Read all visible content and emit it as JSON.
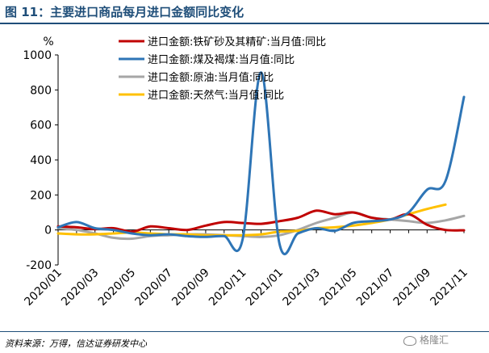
{
  "header": {
    "title": "图 11：主要进口商品每月进口金额同比变化"
  },
  "footer": {
    "source": "资料来源：万得，信达证券研发中心",
    "watermark": "格隆汇"
  },
  "colors": {
    "title": "#1f4e79",
    "axis": "#000000",
    "grid": "#000000"
  },
  "chart_data": {
    "type": "line",
    "unit": "%",
    "ylim": [
      -200,
      1000
    ],
    "yticks": [
      -200,
      0,
      200,
      400,
      600,
      800,
      1000
    ],
    "x": [
      "2020/01",
      "2020/02",
      "2020/03",
      "2020/04",
      "2020/05",
      "2020/06",
      "2020/07",
      "2020/08",
      "2020/09",
      "2020/10",
      "2020/11",
      "2020/12",
      "2021/01",
      "2021/02",
      "2021/03",
      "2021/04",
      "2021/05",
      "2021/06",
      "2021/07",
      "2021/08",
      "2021/09",
      "2021/10",
      "2021/11"
    ],
    "xticklabels": [
      "2020/01",
      "2020/03",
      "2020/05",
      "2020/07",
      "2020/09",
      "2020/11",
      "2021/01",
      "2021/03",
      "2021/05",
      "2021/07",
      "2021/09",
      "2021/11"
    ],
    "legend_position": "top-center",
    "series": [
      {
        "name": "进口金额:铁矿砂及其精矿:当月值:同比",
        "color": "#c00000",
        "values": [
          20,
          15,
          5,
          10,
          -10,
          20,
          10,
          0,
          25,
          45,
          40,
          35,
          50,
          70,
          110,
          90,
          100,
          70,
          60,
          90,
          30,
          0,
          -2
        ]
      },
      {
        "name": "进口金额:煤及褐煤:当月值:同比",
        "color": "#2e75b6",
        "values": [
          15,
          45,
          10,
          0,
          -20,
          -30,
          -25,
          -35,
          -40,
          -35,
          -55,
          900,
          -80,
          -20,
          10,
          -5,
          40,
          50,
          60,
          100,
          230,
          280,
          760
        ]
      },
      {
        "name": "进口金额:原油:当月值:同比",
        "color": "#a6a6a6",
        "values": [
          10,
          0,
          -20,
          -45,
          -50,
          -35,
          -30,
          -25,
          -25,
          -30,
          -35,
          -40,
          -30,
          0,
          40,
          70,
          100,
          70,
          60,
          50,
          40,
          55,
          80
        ]
      },
      {
        "name": "进口金额:天然气:当月值:同比",
        "color": "#ffc000",
        "values": [
          -20,
          -25,
          -25,
          -20,
          -15,
          -20,
          -25,
          -25,
          -30,
          -30,
          -30,
          -25,
          -10,
          -5,
          10,
          15,
          25,
          40,
          60,
          90,
          120,
          145,
          null
        ]
      }
    ]
  }
}
